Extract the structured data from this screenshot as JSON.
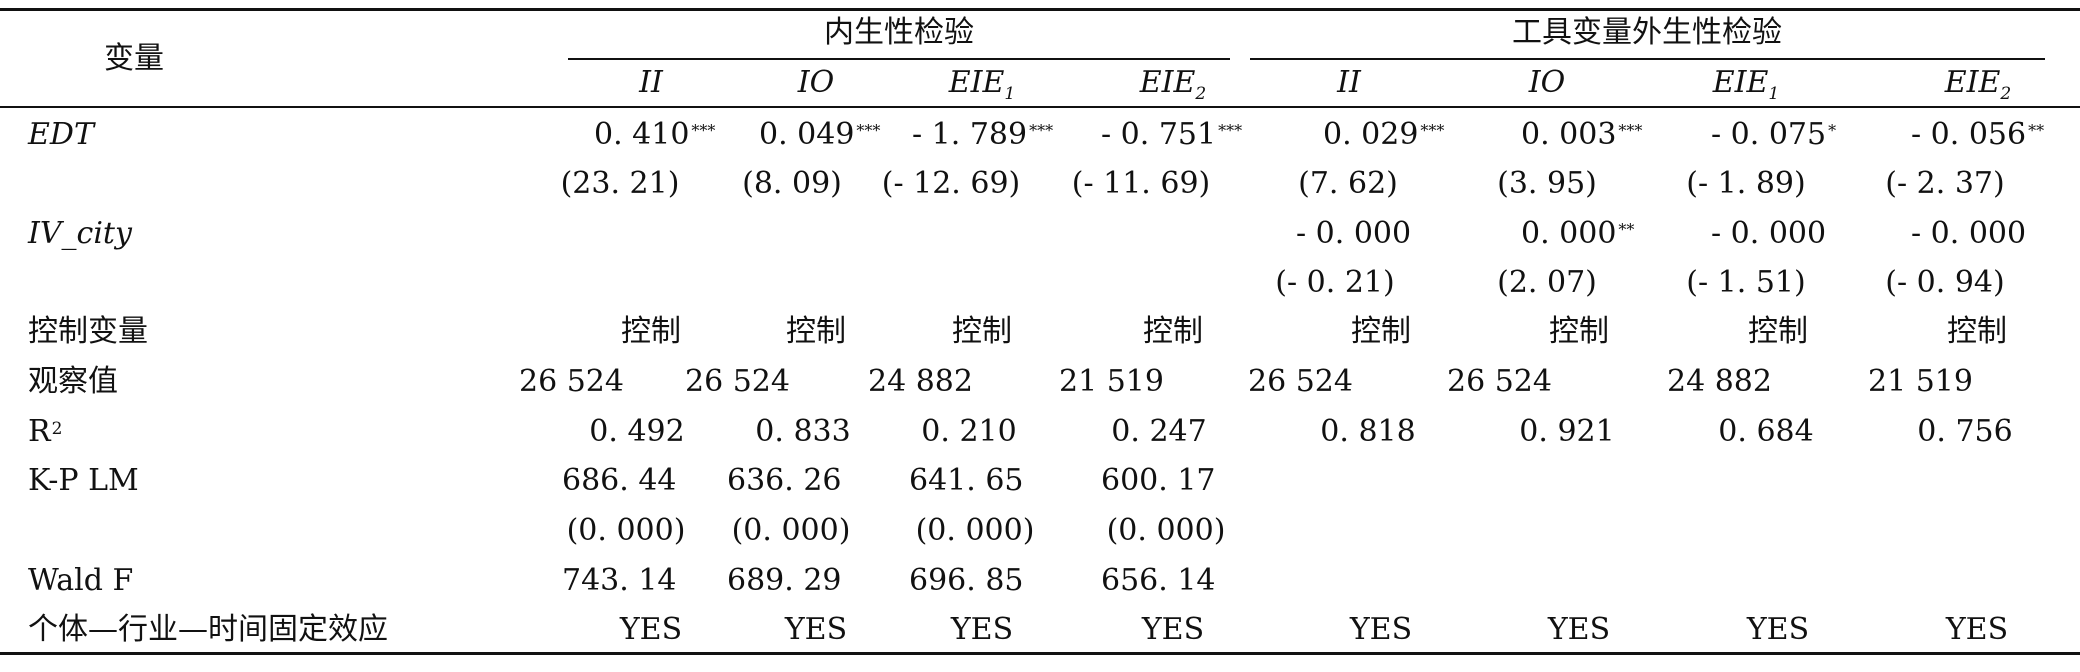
{
  "header": {
    "variable": "变量",
    "group1": "内生性检验",
    "group2": "工具变量外生性检验",
    "cols": [
      {
        "base": "II",
        "sub": ""
      },
      {
        "base": "IO",
        "sub": ""
      },
      {
        "base": "EIE",
        "sub": "1"
      },
      {
        "base": "EIE",
        "sub": "2"
      },
      {
        "base": "II",
        "sub": ""
      },
      {
        "base": "IO",
        "sub": ""
      },
      {
        "base": "EIE",
        "sub": "1"
      },
      {
        "base": "EIE",
        "sub": "2"
      }
    ]
  },
  "rows": {
    "edt": {
      "label": "EDT",
      "coefs": [
        {
          "v": "0. 410",
          "s": "***"
        },
        {
          "v": "0. 049",
          "s": "***"
        },
        {
          "v": "- 1. 789",
          "s": "***"
        },
        {
          "v": "- 0. 751",
          "s": "***"
        },
        {
          "v": "0. 029",
          "s": "***"
        },
        {
          "v": "0. 003",
          "s": "***"
        },
        {
          "v": "- 0. 075",
          "s": "*"
        },
        {
          "v": "- 0. 056",
          "s": "**"
        }
      ],
      "tstats": [
        "(23. 21)",
        "(8. 09)",
        "(- 12. 69)",
        "(- 11. 69)",
        "(7. 62)",
        "(3. 95)",
        "(- 1. 89)",
        "(- 2. 37)"
      ]
    },
    "iv_city": {
      "label": "IV_city",
      "coefs": [
        {
          "v": "- 0. 000",
          "s": ""
        },
        {
          "v": "0. 000",
          "s": "**"
        },
        {
          "v": "- 0. 000",
          "s": ""
        },
        {
          "v": "- 0. 000",
          "s": ""
        }
      ],
      "tstats": [
        "(- 0. 21)",
        "(2. 07)",
        "(- 1. 51)",
        "(- 0. 94)"
      ]
    },
    "controls": {
      "label": "控制变量",
      "values": [
        "控制",
        "控制",
        "控制",
        "控制",
        "控制",
        "控制",
        "控制",
        "控制"
      ]
    },
    "obs": {
      "label": "观察值",
      "values": [
        "26 524",
        "26 524",
        "24 882",
        "21 519",
        "26 524",
        "26 524",
        "24 882",
        "21 519"
      ]
    },
    "r2": {
      "label": "R",
      "label_sup": "2",
      "values": [
        "0. 492",
        "0. 833",
        "0. 210",
        "0. 247",
        "0. 818",
        "0. 921",
        "0. 684",
        "0. 756"
      ]
    },
    "kplm": {
      "label": "K-P LM",
      "values": [
        "686. 44",
        "636. 26",
        "641. 65",
        "600. 17"
      ],
      "pvalues": [
        "(0. 000)",
        "(0. 000)",
        "(0. 000)",
        "(0. 000)"
      ]
    },
    "waldf": {
      "label": "Wald F",
      "values": [
        "743. 14",
        "689. 29",
        "696. 85",
        "656. 14"
      ]
    },
    "fe": {
      "label": "个体—行业—时间固定效应",
      "values": [
        "YES",
        "YES",
        "YES",
        "YES",
        "YES",
        "YES",
        "YES",
        "YES"
      ]
    }
  }
}
